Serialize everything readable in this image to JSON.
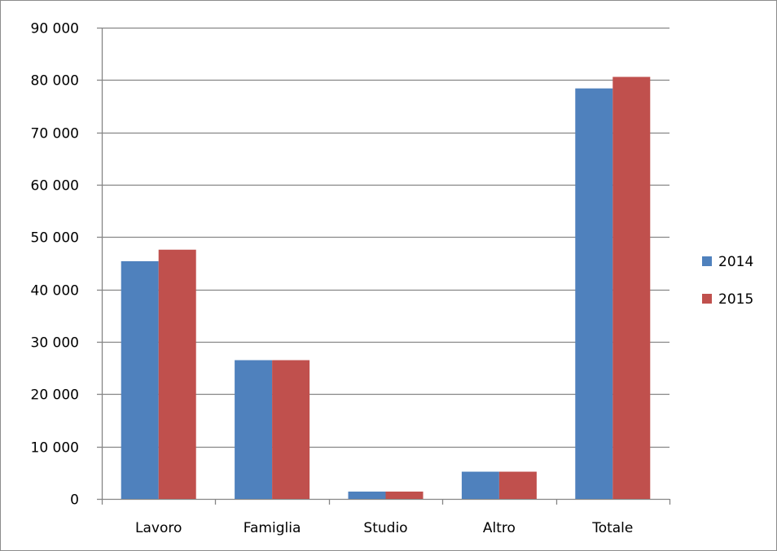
{
  "chart_data": {
    "type": "bar",
    "title": "",
    "xlabel": "",
    "ylabel": "",
    "categories": [
      "Lavoro",
      "Famiglia",
      "Studio",
      "Altro",
      "Totale"
    ],
    "series": [
      {
        "name": "2014",
        "color": "#4f81bd",
        "values": [
          45400,
          26500,
          1400,
          5200,
          78400
        ]
      },
      {
        "name": "2015",
        "color": "#c0504d",
        "values": [
          47600,
          26500,
          1400,
          5200,
          80600
        ]
      }
    ],
    "ylim": [
      0,
      90000
    ],
    "y_ticks": [
      0,
      10000,
      20000,
      30000,
      40000,
      50000,
      60000,
      70000,
      80000,
      90000
    ],
    "y_tick_labels": [
      "0",
      "10 000",
      "20 000",
      "30 000",
      "40 000",
      "50 000",
      "60 000",
      "70 000",
      "80 000",
      "90 000"
    ],
    "grid": true,
    "legend_position": "right",
    "gridline_color": "#868686"
  }
}
